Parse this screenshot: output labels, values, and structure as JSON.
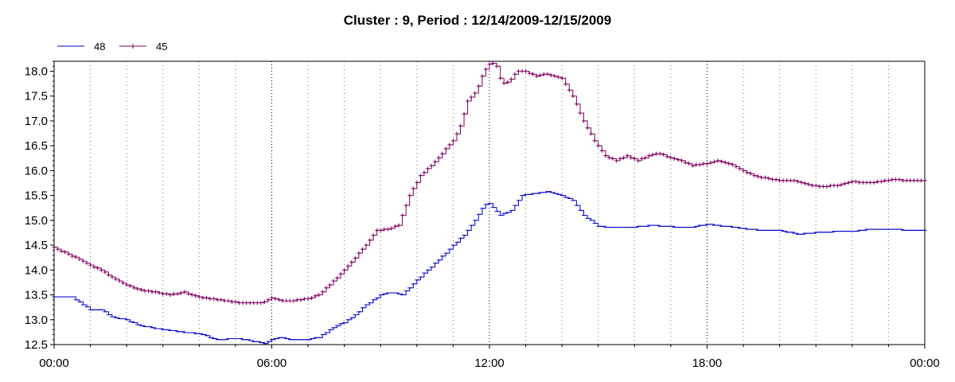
{
  "chart_data": {
    "type": "line",
    "title": "Cluster : 9, Period : 12/14/2009-12/15/2009",
    "xlabel": "",
    "ylabel": "",
    "x_unit": "hours",
    "xlim": [
      0,
      24
    ],
    "ylim": [
      12.5,
      18.2
    ],
    "x_ticks": [
      0,
      6,
      12,
      18,
      24
    ],
    "x_tick_labels": [
      "00:00",
      "06:00",
      "12:00",
      "18:00",
      "00:00"
    ],
    "y_ticks": [
      12.5,
      13.0,
      13.5,
      14.0,
      14.5,
      15.0,
      15.5,
      16.0,
      16.5,
      17.0,
      17.5,
      18.0
    ],
    "y_tick_labels": [
      "12.5",
      "13.0",
      "13.5",
      "14.0",
      "14.5",
      "15.0",
      "15.5",
      "16.0",
      "16.5",
      "17.0",
      "17.5",
      "18.0"
    ],
    "grid": {
      "vertical_dotted": true,
      "horizontal": false
    },
    "legend_position": "top-left",
    "series": [
      {
        "name": "48",
        "color": "#0000cc",
        "points": [
          [
            0,
            13.45
          ],
          [
            0.5,
            13.45
          ],
          [
            0.8,
            13.3
          ],
          [
            1.0,
            13.2
          ],
          [
            1.3,
            13.2
          ],
          [
            1.6,
            13.05
          ],
          [
            2.0,
            13.0
          ],
          [
            2.3,
            12.9
          ],
          [
            2.6,
            12.85
          ],
          [
            3.0,
            12.8
          ],
          [
            3.5,
            12.75
          ],
          [
            4.0,
            12.72
          ],
          [
            4.5,
            12.6
          ],
          [
            5.0,
            12.62
          ],
          [
            5.3,
            12.6
          ],
          [
            5.6,
            12.55
          ],
          [
            5.8,
            12.52
          ],
          [
            6.0,
            12.6
          ],
          [
            6.2,
            12.65
          ],
          [
            6.5,
            12.6
          ],
          [
            7.0,
            12.6
          ],
          [
            7.3,
            12.65
          ],
          [
            7.6,
            12.8
          ],
          [
            8.0,
            12.95
          ],
          [
            8.3,
            13.1
          ],
          [
            8.6,
            13.3
          ],
          [
            9.0,
            13.5
          ],
          [
            9.3,
            13.55
          ],
          [
            9.6,
            13.5
          ],
          [
            10.0,
            13.8
          ],
          [
            10.3,
            14.0
          ],
          [
            10.6,
            14.2
          ],
          [
            11.0,
            14.5
          ],
          [
            11.3,
            14.7
          ],
          [
            11.6,
            15.0
          ],
          [
            11.85,
            15.3
          ],
          [
            12.0,
            15.35
          ],
          [
            12.3,
            15.1
          ],
          [
            12.6,
            15.2
          ],
          [
            12.9,
            15.5
          ],
          [
            13.3,
            15.55
          ],
          [
            13.6,
            15.58
          ],
          [
            14.0,
            15.5
          ],
          [
            14.3,
            15.4
          ],
          [
            14.6,
            15.1
          ],
          [
            15.0,
            14.88
          ],
          [
            15.5,
            14.85
          ],
          [
            16.0,
            14.87
          ],
          [
            16.5,
            14.9
          ],
          [
            17.0,
            14.87
          ],
          [
            17.5,
            14.85
          ],
          [
            18.0,
            14.92
          ],
          [
            18.5,
            14.88
          ],
          [
            19.0,
            14.83
          ],
          [
            19.5,
            14.8
          ],
          [
            20.0,
            14.8
          ],
          [
            20.5,
            14.72
          ],
          [
            21.0,
            14.75
          ],
          [
            21.5,
            14.77
          ],
          [
            22.0,
            14.78
          ],
          [
            22.5,
            14.82
          ],
          [
            23.0,
            14.83
          ],
          [
            23.5,
            14.8
          ],
          [
            24.0,
            14.8
          ]
        ]
      },
      {
        "name": "45",
        "color": "#800060",
        "points": [
          [
            0,
            14.45
          ],
          [
            0.3,
            14.35
          ],
          [
            0.6,
            14.25
          ],
          [
            1.0,
            14.1
          ],
          [
            1.3,
            14.0
          ],
          [
            1.6,
            13.85
          ],
          [
            2.0,
            13.7
          ],
          [
            2.4,
            13.6
          ],
          [
            2.8,
            13.55
          ],
          [
            3.2,
            13.5
          ],
          [
            3.6,
            13.55
          ],
          [
            4.0,
            13.45
          ],
          [
            4.5,
            13.4
          ],
          [
            5.0,
            13.35
          ],
          [
            5.5,
            13.33
          ],
          [
            5.8,
            13.35
          ],
          [
            6.0,
            13.45
          ],
          [
            6.3,
            13.38
          ],
          [
            6.6,
            13.38
          ],
          [
            7.0,
            13.42
          ],
          [
            7.3,
            13.5
          ],
          [
            7.6,
            13.7
          ],
          [
            8.0,
            14.0
          ],
          [
            8.3,
            14.25
          ],
          [
            8.6,
            14.5
          ],
          [
            8.9,
            14.8
          ],
          [
            9.2,
            14.82
          ],
          [
            9.5,
            14.9
          ],
          [
            9.8,
            15.5
          ],
          [
            10.1,
            15.9
          ],
          [
            10.4,
            16.1
          ],
          [
            10.7,
            16.35
          ],
          [
            11.0,
            16.6
          ],
          [
            11.2,
            16.9
          ],
          [
            11.4,
            17.4
          ],
          [
            11.65,
            17.6
          ],
          [
            11.85,
            18.0
          ],
          [
            12.05,
            18.2
          ],
          [
            12.2,
            18.1
          ],
          [
            12.35,
            17.75
          ],
          [
            12.55,
            17.8
          ],
          [
            12.75,
            18.0
          ],
          [
            13.0,
            18.0
          ],
          [
            13.3,
            17.9
          ],
          [
            13.6,
            17.95
          ],
          [
            14.0,
            17.85
          ],
          [
            14.3,
            17.5
          ],
          [
            14.6,
            17.0
          ],
          [
            14.9,
            16.6
          ],
          [
            15.2,
            16.3
          ],
          [
            15.5,
            16.2
          ],
          [
            15.8,
            16.3
          ],
          [
            16.1,
            16.2
          ],
          [
            16.4,
            16.3
          ],
          [
            16.7,
            16.35
          ],
          [
            17.0,
            16.25
          ],
          [
            17.3,
            16.2
          ],
          [
            17.6,
            16.1
          ],
          [
            18.0,
            16.15
          ],
          [
            18.3,
            16.2
          ],
          [
            18.6,
            16.15
          ],
          [
            19.0,
            16.0
          ],
          [
            19.3,
            15.9
          ],
          [
            19.6,
            15.85
          ],
          [
            20.0,
            15.8
          ],
          [
            20.4,
            15.8
          ],
          [
            20.8,
            15.72
          ],
          [
            21.2,
            15.68
          ],
          [
            21.6,
            15.7
          ],
          [
            22.0,
            15.78
          ],
          [
            22.4,
            15.75
          ],
          [
            22.8,
            15.78
          ],
          [
            23.2,
            15.82
          ],
          [
            23.6,
            15.8
          ],
          [
            24.0,
            15.8
          ]
        ]
      }
    ]
  }
}
